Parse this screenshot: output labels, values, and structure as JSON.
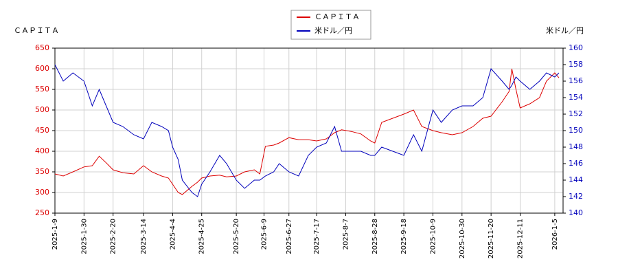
{
  "chart_data": {
    "type": "line",
    "ylabel": "ＣＡＰＩＴＡ",
    "y2label": "米ドル／円",
    "x": [
      "2025-1-9",
      "2025-1-15",
      "2025-1-22",
      "2025-1-30",
      "2025-2-5",
      "2025-2-10",
      "2025-2-15",
      "2025-2-20",
      "2025-2-27",
      "2025-3-7",
      "2025-3-14",
      "2025-3-20",
      "2025-3-27",
      "2025-4-1",
      "2025-4-4",
      "2025-4-8",
      "2025-4-11",
      "2025-4-18",
      "2025-4-22",
      "2025-4-25",
      "2025-5-1",
      "2025-5-8",
      "2025-5-13",
      "2025-5-20",
      "2025-5-26",
      "2025-6-2",
      "2025-6-6",
      "2025-6-10",
      "2025-6-16",
      "2025-6-20",
      "2025-6-27",
      "2025-7-4",
      "2025-7-11",
      "2025-7-17",
      "2025-7-24",
      "2025-7-30",
      "2025-8-4",
      "2025-8-11",
      "2025-8-18",
      "2025-8-25",
      "2025-8-28",
      "2025-9-2",
      "2025-9-10",
      "2025-9-18",
      "2025-9-25",
      "2025-10-1",
      "2025-10-9",
      "2025-10-15",
      "2025-10-23",
      "2025-10-30",
      "2025-11-7",
      "2025-11-14",
      "2025-11-20",
      "2025-11-28",
      "2025-12-3",
      "2025-12-5",
      "2025-12-8",
      "2025-12-11",
      "2025-12-18",
      "2025-12-25",
      "2025-12-30",
      "2026-1-5",
      "2026-1-8"
    ],
    "series": [
      {
        "name": "ＣＡＰＩＴＡ",
        "color": "#dd0000",
        "axis": "y",
        "values": [
          345,
          340,
          350,
          362,
          365,
          388,
          372,
          355,
          348,
          345,
          365,
          350,
          340,
          335,
          320,
          300,
          295,
          315,
          325,
          335,
          340,
          342,
          338,
          340,
          350,
          355,
          345,
          412,
          415,
          420,
          433,
          428,
          428,
          425,
          430,
          445,
          452,
          448,
          442,
          425,
          420,
          470,
          480,
          490,
          500,
          460,
          450,
          445,
          440,
          445,
          460,
          480,
          485,
          520,
          545,
          600,
          550,
          505,
          515,
          530,
          570,
          590,
          578
        ]
      },
      {
        "name": "米ドル／円",
        "color": "#0000bb",
        "axis": "y2",
        "values": [
          158,
          156,
          157,
          156,
          153,
          155,
          153,
          151,
          150.5,
          149.5,
          149,
          151,
          150.5,
          150,
          148,
          146.5,
          144,
          142.5,
          142,
          143.5,
          145,
          147,
          146,
          144,
          143,
          144,
          144,
          144.5,
          145,
          146,
          145,
          144.5,
          147,
          148,
          148.5,
          150.5,
          147.5,
          147.5,
          147.5,
          147,
          147,
          148,
          147.5,
          147,
          149.5,
          147.5,
          152.5,
          151,
          152.5,
          153,
          153,
          154,
          157.5,
          156,
          155,
          155.5,
          156.5,
          156,
          155,
          156,
          157,
          156.5,
          157
        ]
      }
    ],
    "xlim": [
      "2025-1-9",
      "2026-1-11"
    ],
    "xticks": [
      "2025-1-9",
      "2025-1-30",
      "2025-2-20",
      "2025-3-14",
      "2025-4-4",
      "2025-4-25",
      "2025-5-20",
      "2025-6-9",
      "2025-6-27",
      "2025-7-17",
      "2025-8-7",
      "2025-8-28",
      "2025-9-18",
      "2025-10-9",
      "2025-10-30",
      "2025-11-20",
      "2025-12-11",
      "2026-1-5"
    ],
    "ylim": [
      250,
      650
    ],
    "yticks": [
      250,
      300,
      350,
      400,
      450,
      500,
      550,
      600,
      650
    ],
    "y2lim": [
      140,
      160
    ],
    "y2ticks": [
      140,
      142,
      144,
      146,
      148,
      150,
      152,
      154,
      156,
      158,
      160
    ],
    "grid": true
  }
}
